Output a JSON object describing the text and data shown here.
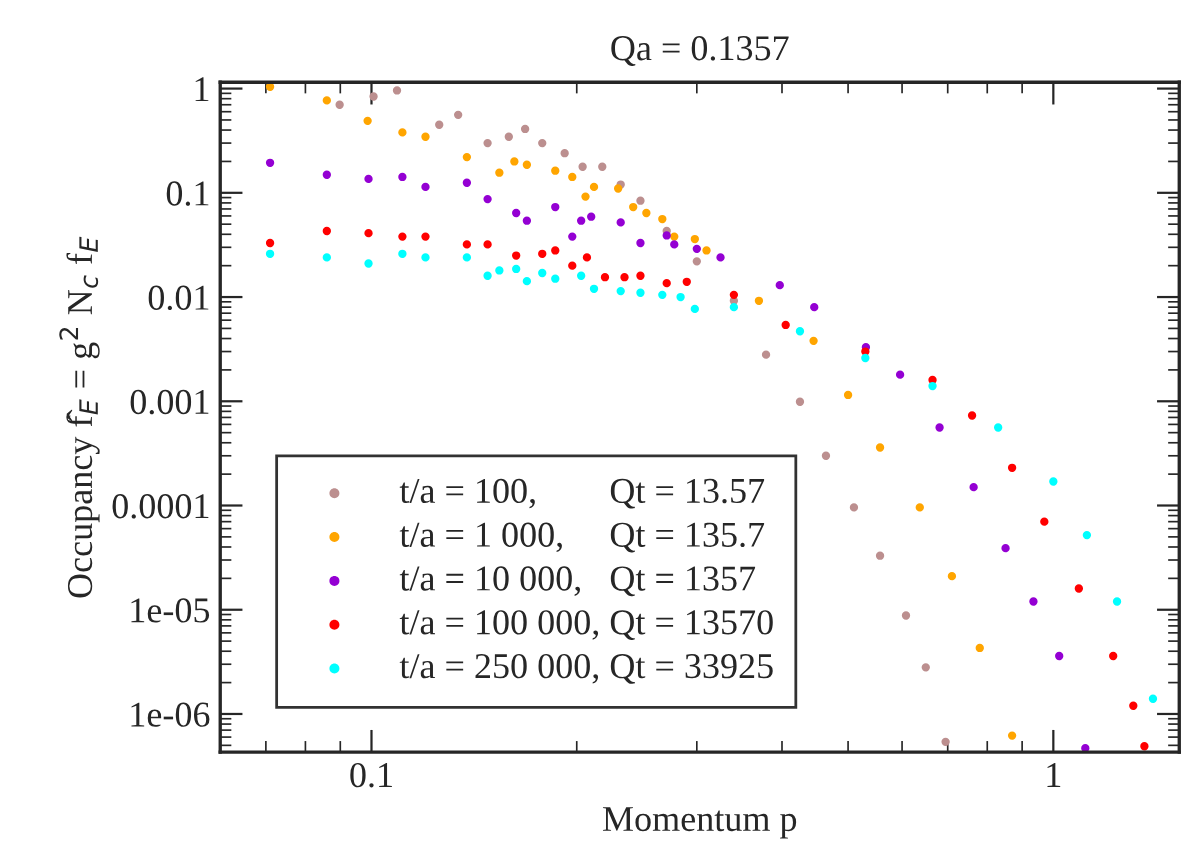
{
  "chart_data": {
    "type": "scatter",
    "title": "Qa = 0.1357",
    "xlabel": "Momentum p",
    "ylabel": "Occupancy f̂$_{E}$ = g$^{2}$ N$_{c}$ f$_{E}$",
    "log": "xy",
    "xlim": [
      0.06,
      1.53
    ],
    "ylim": [
      4.3e-07,
      1.15
    ],
    "xticks": [
      0.1,
      1
    ],
    "yticks": [
      1,
      0.1,
      0.01,
      0.001,
      0.0001,
      {
        "value": 1e-05,
        "label": "1e-05"
      },
      {
        "value": 1e-06,
        "label": "1e-06"
      }
    ],
    "grid": false,
    "legend": "lower left",
    "marker": "circle",
    "series": [
      {
        "name": "t/a = 100,        Qt = 13.57",
        "color": "#bc8f8f",
        "x": [
          0.0898,
          0.1007,
          0.109,
          0.1257,
          0.134,
          0.148,
          0.159,
          0.168,
          0.178,
          0.192,
          0.204,
          0.218,
          0.232,
          0.248,
          0.271,
          0.3,
          0.34,
          0.379,
          0.425,
          0.464,
          0.51,
          0.557,
          0.608,
          0.65,
          0.695
        ],
        "values": [
          0.7,
          0.84,
          0.96,
          0.45,
          0.56,
          0.3,
          0.345,
          0.41,
          0.3,
          0.24,
          0.178,
          0.178,
          0.12,
          0.084,
          0.043,
          0.022,
          0.0092,
          0.0028,
          0.00099,
          0.0003,
          9.6e-05,
          3.3e-05,
          8.8e-06,
          2.8e-06,
          5.4e-07
        ]
      },
      {
        "name": "t/a = 1 000,     Qt = 135.7",
        "color": "#ffa500",
        "x": [
          0.071,
          0.086,
          0.0987,
          0.111,
          0.12,
          0.138,
          0.154,
          0.162,
          0.169,
          0.186,
          0.197,
          0.206,
          0.212,
          0.23,
          0.242,
          0.253,
          0.267,
          0.278,
          0.298,
          0.31,
          0.37,
          0.445,
          0.5,
          0.557,
          0.637,
          0.71,
          0.78,
          0.87
        ],
        "values": [
          1.04,
          0.77,
          0.49,
          0.38,
          0.345,
          0.22,
          0.156,
          0.2,
          0.186,
          0.163,
          0.142,
          0.092,
          0.114,
          0.11,
          0.073,
          0.064,
          0.056,
          0.038,
          0.036,
          0.028,
          0.0092,
          0.0038,
          0.00115,
          0.00036,
          9.6e-05,
          2.1e-05,
          4.3e-06,
          6.2e-07
        ]
      },
      {
        "name": "t/a = 10 000,   Qt = 1357",
        "color": "#9400d3",
        "x": [
          0.071,
          0.086,
          0.099,
          0.111,
          0.12,
          0.138,
          0.148,
          0.163,
          0.169,
          0.186,
          0.197,
          0.203,
          0.21,
          0.232,
          0.248,
          0.271,
          0.278,
          0.3,
          0.325,
          0.397,
          0.446,
          0.531,
          0.596,
          0.681,
          0.764,
          0.851,
          0.935,
          1.02,
          1.114
        ],
        "values": [
          0.194,
          0.149,
          0.136,
          0.142,
          0.114,
          0.125,
          0.087,
          0.064,
          0.054,
          0.073,
          0.038,
          0.054,
          0.059,
          0.052,
          0.033,
          0.039,
          0.032,
          0.029,
          0.024,
          0.013,
          0.008,
          0.0033,
          0.0018,
          0.00056,
          0.00015,
          3.9e-05,
          1.2e-05,
          3.6e-06,
          4.7e-07
        ]
      },
      {
        "name": "t/a = 100 000, Qt = 13570",
        "color": "#ff0000",
        "x": [
          0.071,
          0.086,
          0.099,
          0.111,
          0.12,
          0.138,
          0.148,
          0.163,
          0.178,
          0.186,
          0.197,
          0.207,
          0.22,
          0.235,
          0.248,
          0.271,
          0.29,
          0.34,
          0.405,
          0.53,
          0.665,
          0.76,
          0.87,
          0.97,
          1.09,
          1.224,
          1.31,
          1.36
        ],
        "values": [
          0.033,
          0.043,
          0.041,
          0.038,
          0.038,
          0.032,
          0.032,
          0.025,
          0.026,
          0.028,
          0.02,
          0.024,
          0.0155,
          0.0155,
          0.016,
          0.0136,
          0.014,
          0.0105,
          0.0054,
          0.003,
          0.0016,
          0.00073,
          0.00023,
          7e-05,
          1.6e-05,
          3.6e-06,
          1.2e-06,
          4.9e-07
        ]
      },
      {
        "name": "t/a = 250 000, Qt = 33925",
        "color": "#00ffff",
        "x": [
          0.071,
          0.086,
          0.099,
          0.111,
          0.12,
          0.138,
          0.148,
          0.154,
          0.163,
          0.169,
          0.178,
          0.186,
          0.203,
          0.212,
          0.232,
          0.248,
          0.267,
          0.284,
          0.298,
          0.34,
          0.425,
          0.53,
          0.665,
          0.83,
          1.0,
          1.12,
          1.24,
          1.4
        ],
        "values": [
          0.026,
          0.024,
          0.021,
          0.026,
          0.024,
          0.024,
          0.016,
          0.018,
          0.0186,
          0.0142,
          0.017,
          0.015,
          0.016,
          0.012,
          0.0114,
          0.011,
          0.0105,
          0.01,
          0.0077,
          0.008,
          0.0047,
          0.0026,
          0.0014,
          0.00056,
          0.00017,
          5.2e-05,
          1.2e-05,
          1.4e-06
        ]
      }
    ]
  }
}
